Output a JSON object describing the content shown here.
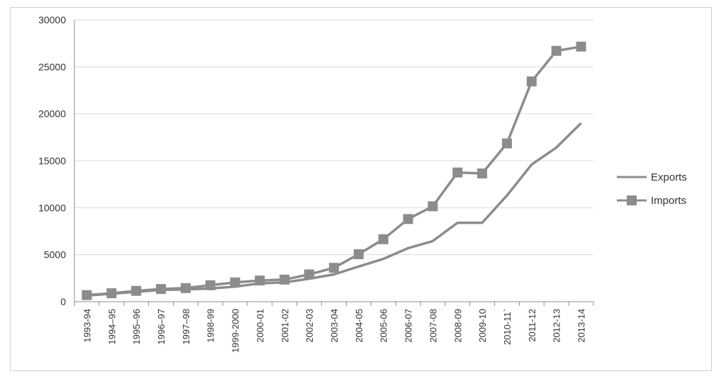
{
  "chart_data": {
    "type": "line",
    "title": "",
    "xlabel": "",
    "ylabel": "",
    "ylim": [
      0,
      30000
    ],
    "yticks": [
      "0",
      "5000",
      "10000",
      "15000",
      "20000",
      "25000",
      "30000"
    ],
    "grid": "horizontal",
    "legend_position": "right",
    "categories": [
      "1993-94",
      "1994–95",
      "1995–96",
      "1996–97",
      "1997–98",
      "1998-99",
      "1999-2000",
      "2000-01",
      "2001-02",
      "2002-03",
      "2003-04",
      "2004-05",
      "2005-06",
      "2006-07",
      "2007-08",
      "2008-09",
      "2009-10",
      "2010-11`",
      "2011-12",
      "2012-13",
      "2013-14"
    ],
    "series": [
      {
        "name": "Exports",
        "color": "#8c8c8c",
        "marker": "none",
        "values": [
          650,
          850,
          1050,
          1250,
          1300,
          1400,
          1600,
          1950,
          2050,
          2450,
          2900,
          3750,
          4550,
          5700,
          6450,
          8400,
          8400,
          11300,
          14600,
          16400,
          19000
        ]
      },
      {
        "name": "Imports",
        "color": "#8c8c8c",
        "marker": "square",
        "values": [
          700,
          900,
          1150,
          1350,
          1450,
          1750,
          2050,
          2250,
          2350,
          2900,
          3600,
          5050,
          6650,
          8800,
          10150,
          13750,
          13650,
          16850,
          23450,
          26700,
          27150
        ]
      }
    ]
  }
}
